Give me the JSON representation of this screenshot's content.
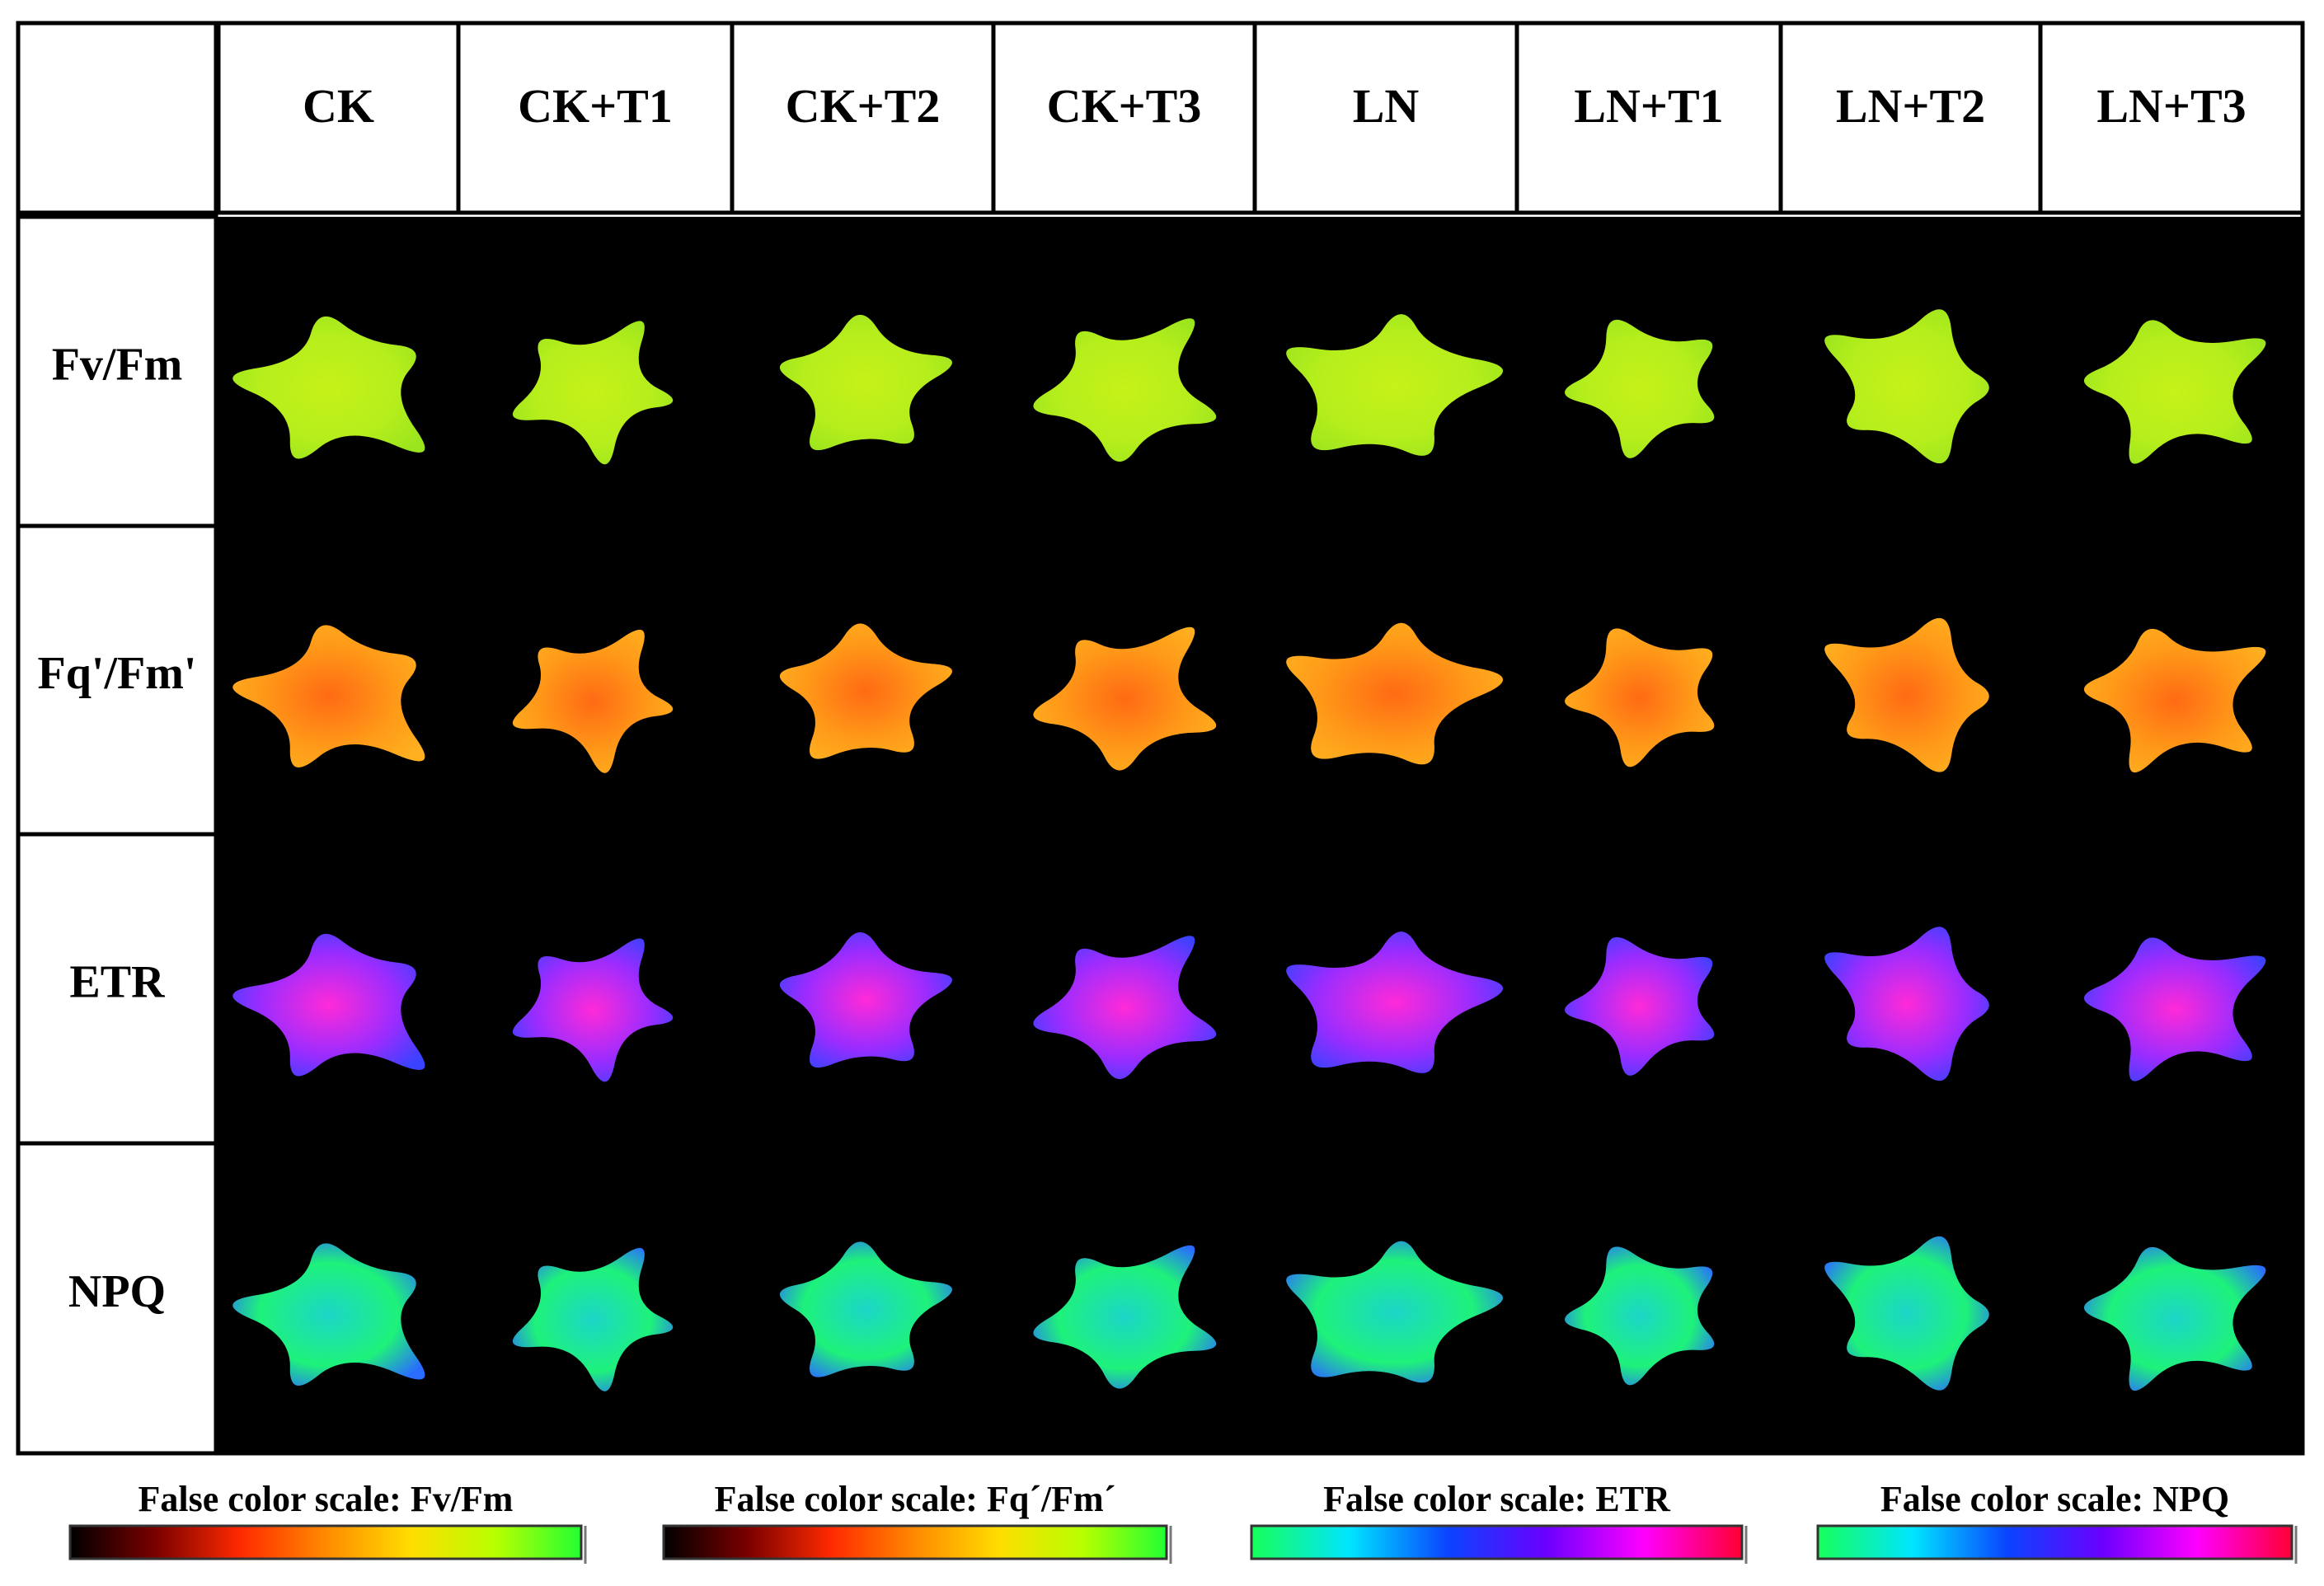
{
  "columns": [
    "CK",
    "CK+T1",
    "CK+T2",
    "CK+T3",
    "LN",
    "LN+T1",
    "LN+T2",
    "LN+T3"
  ],
  "rows": [
    {
      "label": "Fv/Fm",
      "palette": "fvfm"
    },
    {
      "label": "Fq'/Fm'",
      "palette": "fq"
    },
    {
      "label": "ETR",
      "palette": "etr"
    },
    {
      "label": "NPQ",
      "palette": "npq"
    }
  ],
  "scales": [
    {
      "title": "False color scale: Fv/Fm",
      "colors": [
        "#000000",
        "#7a0000",
        "#ff2a00",
        "#ff8a00",
        "#ffdd00",
        "#b7ff00",
        "#22ff33"
      ]
    },
    {
      "title": "False color scale: Fq´/Fm´",
      "colors": [
        "#000000",
        "#7a0000",
        "#ff2a00",
        "#ff8a00",
        "#ffdd00",
        "#b7ff00",
        "#22ff33"
      ]
    },
    {
      "title": "False color scale: ETR",
      "colors": [
        "#18ff5a",
        "#00e5ff",
        "#0a44ff",
        "#6a00ff",
        "#ff00ff",
        "#ff0033"
      ]
    },
    {
      "title": "False color scale: NPQ",
      "colors": [
        "#18ff5a",
        "#00e5ff",
        "#0a44ff",
        "#6a00ff",
        "#ff00ff",
        "#ff0033"
      ]
    }
  ],
  "palettes": {
    "fvfm": [
      "#b6ee1c",
      "#c6f218",
      "#9be51e"
    ],
    "fq": [
      "#ff9a18",
      "#ff6a14",
      "#ffb020"
    ],
    "etr": [
      "#9a2cff",
      "#ff2ad8",
      "#3a42ff"
    ],
    "npq": [
      "#1ef27a",
      "#1cd6c8",
      "#2a6cff"
    ]
  }
}
